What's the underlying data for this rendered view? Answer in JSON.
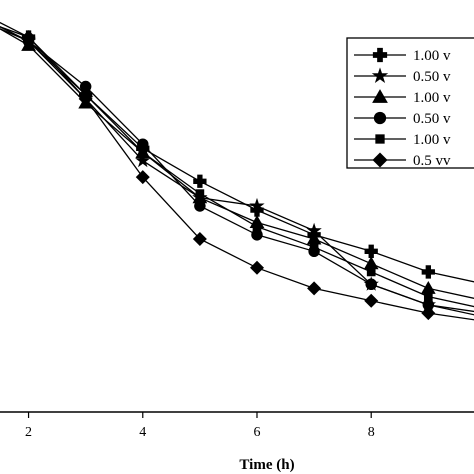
{
  "chart_data": {
    "type": "line",
    "xlabel": "Time (h)",
    "ylabel": "",
    "title": "",
    "x_ticks": [
      2,
      4,
      6,
      8
    ],
    "xlim": [
      1.5,
      9.8
    ],
    "ylim": [
      0.0,
      1.0
    ],
    "grid": false,
    "legend_position": "top-right",
    "x": [
      1,
      2,
      3,
      4,
      5,
      6,
      7,
      8,
      9,
      10
    ],
    "series": [
      {
        "name": "1.00 v",
        "marker": "plus",
        "values": [
          0.98,
          0.91,
          0.77,
          0.64,
          0.56,
          0.49,
          0.43,
          0.39,
          0.34,
          0.31
        ]
      },
      {
        "name": "0.50 v",
        "marker": "star",
        "values": [
          0.97,
          0.9,
          0.76,
          0.61,
          0.52,
          0.5,
          0.44,
          0.31,
          0.26,
          0.23
        ]
      },
      {
        "name": "1.00 v",
        "marker": "triangle",
        "values": [
          0.97,
          0.89,
          0.75,
          0.63,
          0.52,
          0.46,
          0.42,
          0.36,
          0.3,
          0.27
        ]
      },
      {
        "name": "0.50 v",
        "marker": "circle",
        "values": [
          0.96,
          0.9,
          0.79,
          0.65,
          0.5,
          0.43,
          0.39,
          0.31,
          0.26,
          0.24
        ]
      },
      {
        "name": "1.00 v",
        "marker": "square",
        "values": [
          0.97,
          0.9,
          0.77,
          0.63,
          0.53,
          0.45,
          0.4,
          0.34,
          0.28,
          0.25
        ]
      },
      {
        "name": "0.5 vv",
        "marker": "diamond",
        "values": [
          0.96,
          0.91,
          0.76,
          0.57,
          0.42,
          0.35,
          0.3,
          0.27,
          0.24,
          0.22
        ]
      }
    ]
  }
}
